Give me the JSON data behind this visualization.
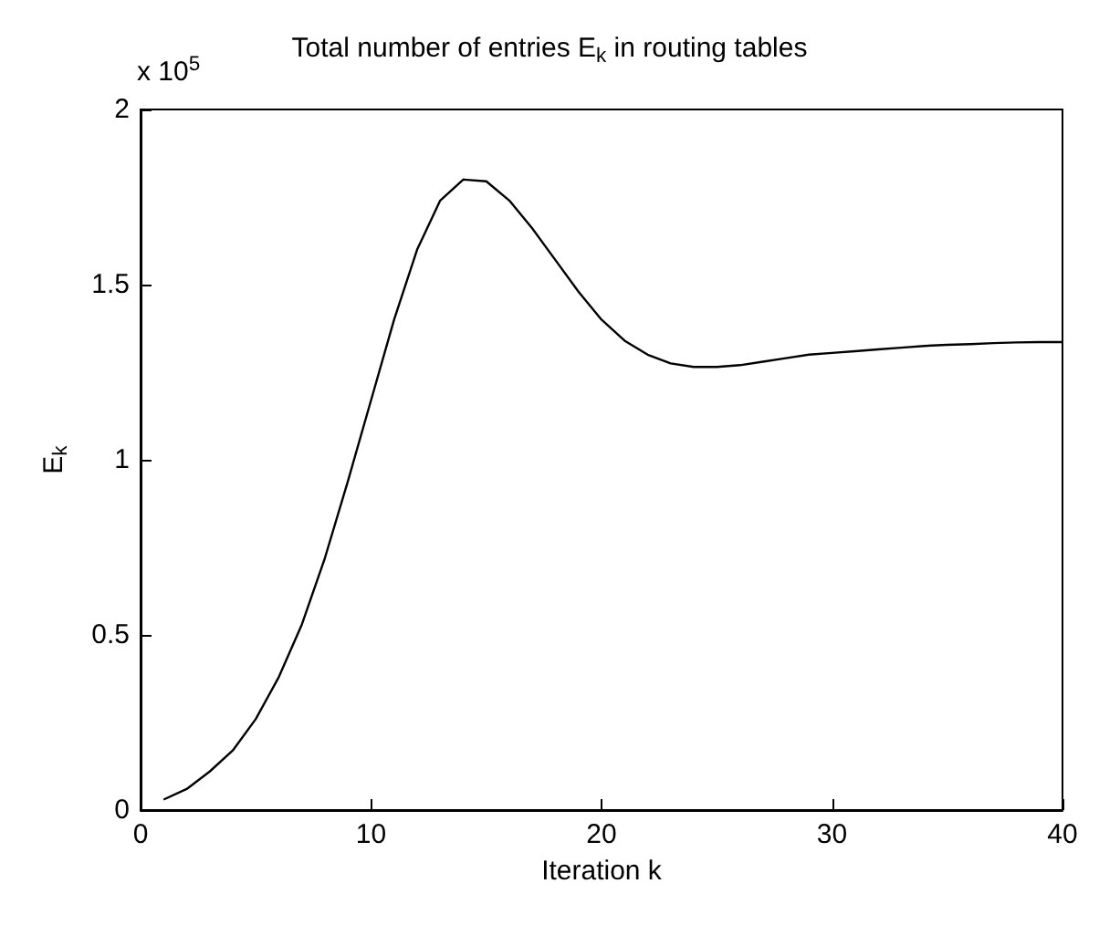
{
  "chart_data": {
    "type": "line",
    "title": "Total number of entries E$_{k}$ in routing tables",
    "xlabel": "Iteration k",
    "ylabel": "E$_{k}$",
    "annotations": [
      "x 10$^{5}$"
    ],
    "x": [
      1,
      2,
      3,
      4,
      5,
      6,
      7,
      8,
      9,
      10,
      11,
      12,
      13,
      14,
      15,
      16,
      17,
      18,
      19,
      20,
      21,
      22,
      23,
      24,
      25,
      26,
      27,
      28,
      29,
      30,
      31,
      32,
      33,
      34,
      35,
      36,
      37,
      38,
      39,
      40
    ],
    "series": [
      {
        "color": "#000000",
        "values": [
          0.03,
          0.06,
          0.11,
          0.17,
          0.26,
          0.38,
          0.53,
          0.72,
          0.94,
          1.17,
          1.4,
          1.6,
          1.74,
          1.8,
          1.795,
          1.74,
          1.66,
          1.57,
          1.48,
          1.4,
          1.34,
          1.3,
          1.275,
          1.265,
          1.265,
          1.27,
          1.28,
          1.29,
          1.3,
          1.305,
          1.31,
          1.315,
          1.32,
          1.325,
          1.328,
          1.33,
          1.333,
          1.335,
          1.336,
          1.336
        ]
      }
    ],
    "xlim": [
      0,
      40
    ],
    "xticks": [
      0,
      10,
      20,
      30,
      40
    ],
    "ylim": [
      0,
      2
    ],
    "yticks": [
      0,
      0.5,
      1,
      1.5,
      2
    ],
    "grid": false,
    "marker": "none",
    "line_style": "solid"
  }
}
